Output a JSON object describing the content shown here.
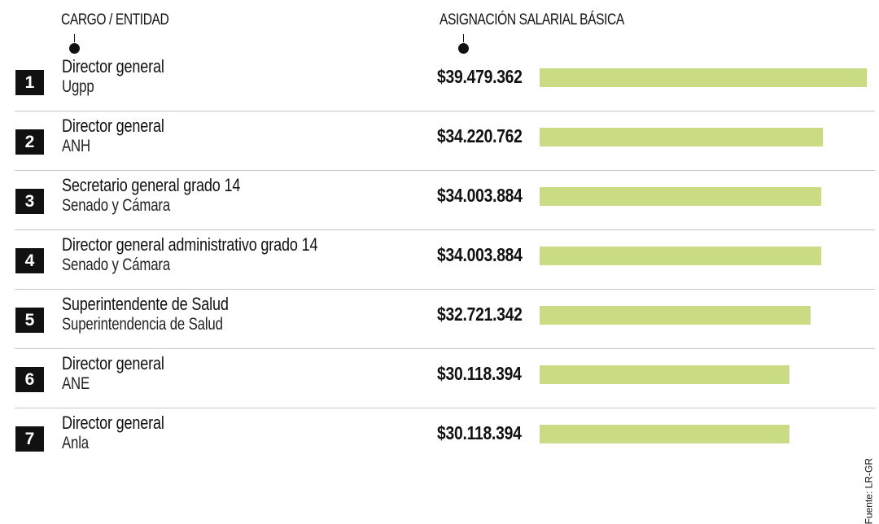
{
  "header": {
    "cargo_label": "CARGO",
    "separator": "/",
    "entidad_label": "ENTIDAD",
    "asignacion_label": "ASIGNACIÓN SALARIAL BÁSICA"
  },
  "credit": "Fuente: LR-GR",
  "colors": {
    "bar": "#c9dc84",
    "rank_bg": "#111111",
    "separator": "#c8c8c8"
  },
  "chart_data": {
    "type": "bar",
    "orientation": "horizontal",
    "xlim": [
      0,
      39479362
    ],
    "items": [
      {
        "rank": "1",
        "cargo": "Director general",
        "entidad": "Ugpp",
        "value": 39479362,
        "value_label": "$39.479.362"
      },
      {
        "rank": "2",
        "cargo": "Director general",
        "entidad": "ANH",
        "value": 34220762,
        "value_label": "$34.220.762"
      },
      {
        "rank": "3",
        "cargo": "Secretario general grado 14",
        "entidad": "Senado y Cámara",
        "value": 34003884,
        "value_label": "$34.003.884"
      },
      {
        "rank": "4",
        "cargo": "Director general administrativo grado 14",
        "entidad": "Senado y Cámara",
        "value": 34003884,
        "value_label": "$34.003.884"
      },
      {
        "rank": "5",
        "cargo": "Superintendente de Salud",
        "entidad": "Superintendencia de Salud",
        "value": 32721342,
        "value_label": "$32.721.342"
      },
      {
        "rank": "6",
        "cargo": "Director general",
        "entidad": "ANE",
        "value": 30118394,
        "value_label": "$30.118.394"
      },
      {
        "rank": "7",
        "cargo": "Director general",
        "entidad": "Anla",
        "value": 30118394,
        "value_label": "$30.118.394"
      }
    ]
  }
}
